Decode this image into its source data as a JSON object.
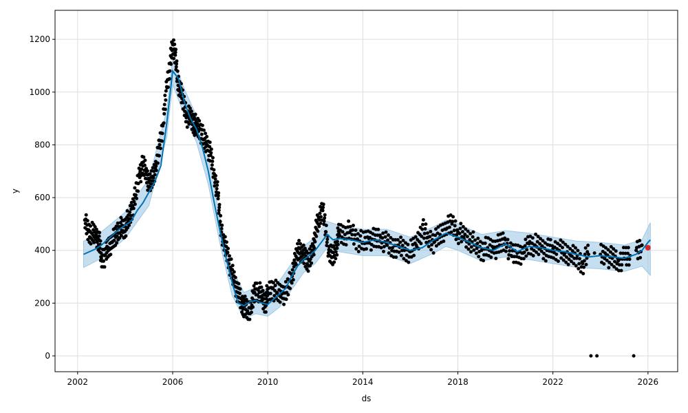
{
  "chart_data": {
    "type": "line",
    "title": "",
    "xlabel": "ds",
    "ylabel": "y",
    "xlim": [
      2001.05,
      2027.25
    ],
    "ylim": [
      -60,
      1310
    ],
    "grid": true,
    "legend": "none",
    "x_ticks": [
      2002,
      2006,
      2010,
      2014,
      2018,
      2022,
      2026
    ],
    "y_ticks": [
      0,
      200,
      400,
      600,
      800,
      1000,
      1200
    ],
    "colors": {
      "observed": "#000000",
      "forecast": "#0072b2",
      "interval": "#9ec8e6",
      "last_point": "#d62728"
    },
    "series": [
      {
        "role": "forecast",
        "x": [
          2002.25,
          2002.5,
          2002.75,
          2003.0,
          2003.25,
          2003.5,
          2003.75,
          2004.0,
          2004.25,
          2004.5,
          2004.75,
          2005.0,
          2005.25,
          2005.5,
          2005.75,
          2006.0,
          2006.25,
          2006.5,
          2006.75,
          2007.0,
          2007.25,
          2007.5,
          2007.75,
          2008.0,
          2008.25,
          2008.5,
          2008.75,
          2009.0,
          2009.25,
          2009.5,
          2009.75,
          2010.0,
          2010.25,
          2010.5,
          2010.75,
          2011.0,
          2011.25,
          2011.5,
          2011.75,
          2012.0,
          2012.25,
          2012.5,
          2012.75,
          2013.0,
          2013.5,
          2014.0,
          2014.5,
          2015.0,
          2015.5,
          2016.0,
          2016.5,
          2017.0,
          2017.5,
          2018.0,
          2018.5,
          2019.0,
          2019.5,
          2020.0,
          2020.5,
          2021.0,
          2021.5,
          2022.0,
          2022.5,
          2023.0,
          2023.5,
          2024.0,
          2024.5,
          2025.0,
          2025.5,
          2025.75,
          2026.0,
          2026.1
        ],
        "values": [
          385,
          395,
          405,
          420,
          440,
          460,
          480,
          495,
          510,
          550,
          580,
          620,
          660,
          720,
          880,
          1080,
          1050,
          960,
          900,
          860,
          790,
          700,
          580,
          470,
          370,
          280,
          200,
          190,
          205,
          210,
          200,
          195,
          215,
          235,
          255,
          300,
          340,
          365,
          380,
          400,
          430,
          460,
          440,
          445,
          440,
          430,
          440,
          430,
          415,
          400,
          410,
          440,
          465,
          450,
          430,
          410,
          400,
          425,
          395,
          415,
          410,
          400,
          395,
          385,
          375,
          380,
          375,
          370,
          385,
          400,
          430,
          440
        ]
      },
      {
        "role": "interval",
        "x": [
          2002.25,
          2003.0,
          2004.0,
          2005.0,
          2005.75,
          2006.0,
          2006.5,
          2007.0,
          2007.5,
          2008.0,
          2008.5,
          2009.0,
          2009.5,
          2010.0,
          2010.5,
          2011.0,
          2011.5,
          2012.0,
          2012.5,
          2013.0,
          2014.0,
          2015.0,
          2016.0,
          2017.0,
          2017.5,
          2018.0,
          2019.0,
          2020.0,
          2021.0,
          2022.0,
          2023.0,
          2024.0,
          2025.0,
          2025.75,
          2026.1
        ],
        "lower": [
          335,
          370,
          445,
          570,
          830,
          1030,
          910,
          810,
          650,
          420,
          230,
          140,
          160,
          150,
          185,
          250,
          315,
          350,
          410,
          395,
          380,
          380,
          350,
          390,
          415,
          400,
          360,
          375,
          365,
          350,
          335,
          330,
          320,
          340,
          305
        ],
        "upper": [
          435,
          470,
          545,
          670,
          930,
          1130,
          1010,
          910,
          750,
          520,
          330,
          240,
          260,
          250,
          285,
          350,
          415,
          450,
          510,
          495,
          480,
          480,
          450,
          490,
          515,
          500,
          460,
          475,
          465,
          450,
          435,
          430,
          420,
          440,
          505
        ]
      },
      {
        "role": "observed",
        "x": [
          2002.3,
          2002.45,
          2002.6,
          2002.75,
          2002.9,
          2003.0,
          2003.15,
          2003.3,
          2003.45,
          2003.6,
          2003.75,
          2003.9,
          2004.0,
          2004.15,
          2004.3,
          2004.45,
          2004.6,
          2004.75,
          2004.9,
          2005.0,
          2005.15,
          2005.3,
          2005.45,
          2005.6,
          2005.75,
          2005.9,
          2006.0,
          2006.1,
          2006.2,
          2006.3,
          2006.45,
          2006.6,
          2006.75,
          2006.9,
          2007.0,
          2007.15,
          2007.3,
          2007.45,
          2007.6,
          2007.75,
          2007.9,
          2008.0,
          2008.15,
          2008.3,
          2008.45,
          2008.6,
          2008.75,
          2008.9,
          2009.0,
          2009.15,
          2009.3,
          2009.45,
          2009.6,
          2009.75,
          2009.9,
          2010.0,
          2010.2,
          2010.4,
          2010.6,
          2010.8,
          2011.0,
          2011.15,
          2011.3,
          2011.45,
          2011.6,
          2011.75,
          2011.9,
          2012.0,
          2012.15,
          2012.3,
          2012.45,
          2012.6,
          2012.75,
          2012.9,
          2013.0,
          2013.25,
          2013.5,
          2013.75,
          2014.0,
          2014.25,
          2014.5,
          2014.75,
          2015.0,
          2015.25,
          2015.5,
          2015.75,
          2016.0,
          2016.25,
          2016.5,
          2016.75,
          2017.0,
          2017.25,
          2017.5,
          2017.75,
          2018.0,
          2018.25,
          2018.5,
          2018.75,
          2019.0,
          2019.25,
          2019.5,
          2019.75,
          2020.0,
          2020.25,
          2020.5,
          2020.75,
          2021.0,
          2021.25,
          2021.5,
          2021.75,
          2022.0,
          2022.25,
          2022.5,
          2022.75,
          2023.0,
          2023.25,
          2023.5,
          2023.6,
          2023.75,
          2023.85,
          2024.0,
          2024.25,
          2024.5,
          2024.75,
          2025.0,
          2025.25,
          2025.4,
          2025.5,
          2025.75
        ],
        "values": [
          515,
          470,
          465,
          455,
          440,
          370,
          380,
          410,
          430,
          450,
          490,
          475,
          490,
          520,
          560,
          610,
          690,
          720,
          700,
          640,
          680,
          720,
          800,
          880,
          1020,
          1110,
          1180,
          1150,
          1050,
          1010,
          960,
          910,
          900,
          880,
          870,
          860,
          820,
          800,
          760,
          690,
          610,
          510,
          430,
          390,
          330,
          280,
          240,
          200,
          190,
          170,
          180,
          240,
          250,
          220,
          200,
          240,
          255,
          240,
          235,
          240,
          310,
          350,
          410,
          390,
          370,
          360,
          395,
          460,
          520,
          560,
          470,
          380,
          375,
          420,
          465,
          460,
          475,
          440,
          430,
          445,
          440,
          450,
          425,
          410,
          420,
          400,
          395,
          420,
          480,
          450,
          430,
          460,
          480,
          500,
          470,
          450,
          440,
          420,
          400,
          410,
          405,
          420,
          440,
          380,
          390,
          390,
          425,
          420,
          410,
          400,
          405,
          400,
          390,
          380,
          370,
          350,
          385,
          0,
          390,
          0,
          385,
          380,
          370,
          360,
          370,
          380,
          0,
          400,
          420
        ]
      },
      {
        "role": "last_point",
        "x": [
          2026.0
        ],
        "values": [
          410
        ]
      }
    ]
  }
}
